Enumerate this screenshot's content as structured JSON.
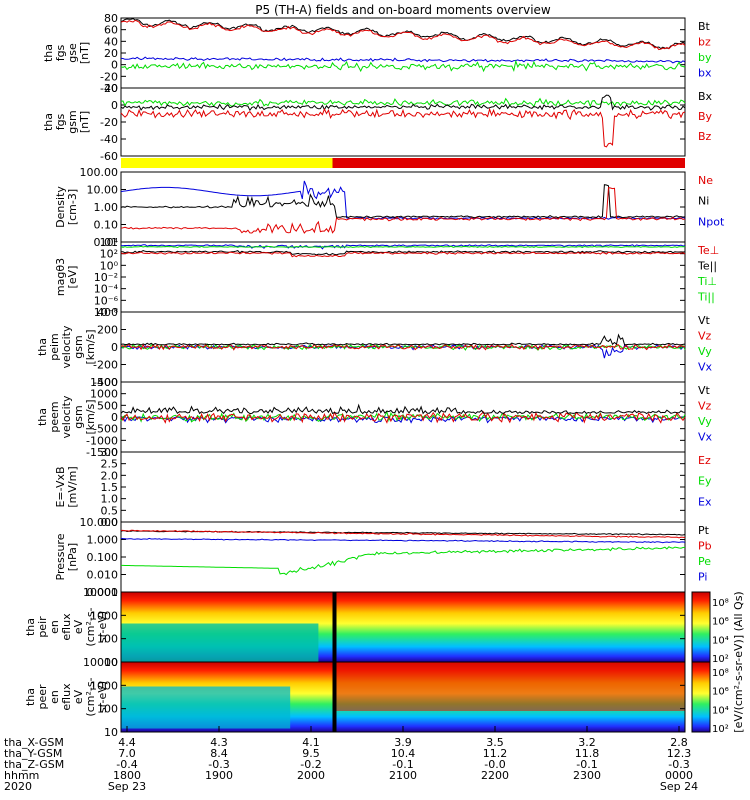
{
  "title": "P5 (TH-A) fields and on-board moments overview",
  "colors": {
    "black": "#000000",
    "red": "#e00000",
    "green": "#00dd00",
    "blue": "#0000dd",
    "yellow": "#ffff00"
  },
  "colorbar_ticks": [
    "10⁸",
    "10⁶",
    "10⁴",
    "10²"
  ],
  "colorbar_label": "[eV/(cm²-s-sr-eV)] (All Qs)",
  "time_axis": {
    "rows": [
      {
        "name": "tha_X-GSM",
        "values": [
          "4.4",
          "4.3",
          "4.1",
          "3.9",
          "3.5",
          "3.2",
          "2.8"
        ]
      },
      {
        "name": "tha_Y-GSM",
        "values": [
          "7.0",
          "8.4",
          "9.5",
          "10.4",
          "11.2",
          "11.8",
          "12.3"
        ]
      },
      {
        "name": "tha_Z-GSM",
        "values": [
          "-0.4",
          "-0.3",
          "-0.2",
          "-0.1",
          "-0.0",
          "-0.1",
          "-0.3"
        ]
      },
      {
        "name": "hhmm",
        "values": [
          "1800",
          "1900",
          "2000",
          "2100",
          "2200",
          "2300",
          "0000"
        ]
      },
      {
        "name": "2020",
        "values": [
          "Sep 23",
          "",
          "",
          "",
          "",
          "",
          "Sep 24"
        ]
      }
    ]
  },
  "chart_data": [
    {
      "type": "line",
      "ylabel_lines": [
        "tha",
        "fgs",
        "gse",
        "[nT]"
      ],
      "ylim": [
        -40,
        80
      ],
      "ticks": [
        "80",
        "60",
        "40",
        "20",
        "0",
        "-20",
        "-40"
      ],
      "series": [
        {
          "name": "Bt",
          "color": "black"
        },
        {
          "name": "bz",
          "color": "red"
        },
        {
          "name": "by",
          "color": "green"
        },
        {
          "name": "bx",
          "color": "blue"
        }
      ]
    },
    {
      "type": "line",
      "ylabel_lines": [
        "tha",
        "fgs",
        "gsm",
        "[nT]"
      ],
      "ylim": [
        -70,
        30
      ],
      "ticks": [
        "20",
        "0",
        "-20",
        "-40",
        "-60"
      ],
      "series": [
        {
          "name": "Bx",
          "color": "black"
        },
        {
          "name": "By",
          "color": "red"
        },
        {
          "name": "Bz",
          "color": "red"
        }
      ]
    },
    {
      "type": "line",
      "ylabel_lines": [
        "Density",
        "[cm-3]"
      ],
      "log": true,
      "ylim": [
        0.01,
        100
      ],
      "ticks": [
        "100.00",
        "10.00",
        "1.00",
        "0.10",
        "0.01"
      ],
      "series": [
        {
          "name": "Ne",
          "color": "red"
        },
        {
          "name": "Ni",
          "color": "black"
        },
        {
          "name": "Npot",
          "color": "blue"
        }
      ]
    },
    {
      "type": "line",
      "ylabel_lines": [
        "magθ3",
        "[eV]"
      ],
      "log": true,
      "ylim": [
        1e-08,
        10000
      ],
      "ticks": [
        "10⁴",
        "10²",
        "10⁰",
        "10⁻²",
        "10⁻⁴",
        "10⁻⁶",
        "10⁻⁸"
      ],
      "series": [
        {
          "name": "Te⊥",
          "color": "red"
        },
        {
          "name": "Te||",
          "color": "black"
        },
        {
          "name": "Ti⊥",
          "color": "green"
        },
        {
          "name": "Ti||",
          "color": "green"
        }
      ]
    },
    {
      "type": "line",
      "ylabel_lines": [
        "tha",
        "peim",
        "velocity",
        "gsm",
        "[km/s]"
      ],
      "ylim": [
        -400,
        400
      ],
      "ticks": [
        "400",
        "200",
        "0",
        "-200",
        "-400"
      ],
      "series": [
        {
          "name": "Vt",
          "color": "black"
        },
        {
          "name": "Vz",
          "color": "red"
        },
        {
          "name": "Vy",
          "color": "green"
        },
        {
          "name": "Vx",
          "color": "blue"
        }
      ]
    },
    {
      "type": "line",
      "ylabel_lines": [
        "tha",
        "peem",
        "velocity",
        "gsm",
        "[km/s]"
      ],
      "ylim": [
        -1500,
        1500
      ],
      "ticks": [
        "1500",
        "1000",
        "500",
        "0",
        "-500",
        "-1000",
        "-1500"
      ],
      "series": [
        {
          "name": "Vt",
          "color": "black"
        },
        {
          "name": "Vz",
          "color": "red"
        },
        {
          "name": "Vy",
          "color": "green"
        },
        {
          "name": "Vx",
          "color": "blue"
        }
      ]
    },
    {
      "type": "line",
      "ylabel_lines": [
        "E=-VxB",
        "[mV/m]"
      ],
      "ylim": [
        0,
        3
      ],
      "ticks": [
        "3.0",
        "2.5",
        "2.0",
        "1.5",
        "1.0",
        "0.5",
        "0.0"
      ],
      "series": [
        {
          "name": "Ez",
          "color": "red"
        },
        {
          "name": "Ey",
          "color": "green"
        },
        {
          "name": "Ex",
          "color": "blue"
        }
      ]
    },
    {
      "type": "line",
      "ylabel_lines": [
        "Pressure",
        "[nPa]"
      ],
      "log": true,
      "ylim": [
        0.001,
        10
      ],
      "ticks": [
        "10.000",
        "1.000",
        "0.100",
        "0.010",
        "0.001"
      ],
      "series": [
        {
          "name": "Pt",
          "color": "black"
        },
        {
          "name": "Pb",
          "color": "red"
        },
        {
          "name": "Pe",
          "color": "green"
        },
        {
          "name": "Pi",
          "color": "blue"
        }
      ]
    },
    {
      "type": "heatmap",
      "ylabel_lines": [
        "tha",
        "peir",
        "en",
        "eflux",
        "eV",
        "(cm²-s-",
        "sr-eV)"
      ],
      "log": true,
      "ylim": [
        5,
        30000
      ],
      "ticks": [
        "10000",
        "1000",
        "100",
        "10"
      ]
    },
    {
      "type": "heatmap",
      "ylabel_lines": [
        "tha",
        "peer",
        "en",
        "eflux",
        "eV",
        "(cm²-s-",
        "sr-eV)"
      ],
      "log": true,
      "ylim": [
        5,
        30000
      ],
      "ticks": [
        "10000",
        "1000",
        "100",
        "10"
      ]
    }
  ]
}
